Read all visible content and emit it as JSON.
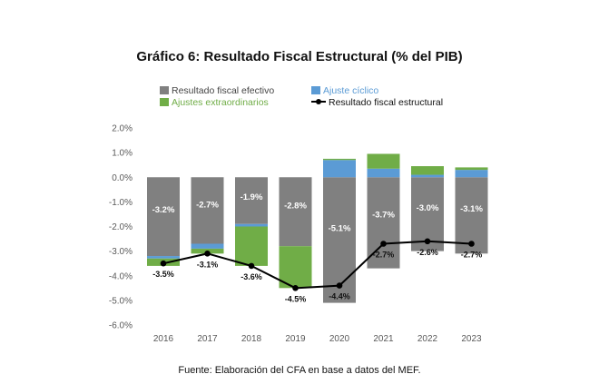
{
  "title": "Gráfico 6: Resultado Fiscal Estructural (% del PIB)",
  "source": "Fuente: Elaboración del CFA en base a datos del MEF.",
  "colors": {
    "effective": "#808080",
    "cyclical": "#5b9bd5",
    "extraordinary": "#70ad47",
    "structural": "#000000",
    "axis_text": "#595959"
  },
  "chart_data": {
    "type": "bar",
    "categories": [
      "2016",
      "2017",
      "2018",
      "2019",
      "2020",
      "2021",
      "2022",
      "2023"
    ],
    "ylim": [
      -6.0,
      2.0
    ],
    "yticks": [
      "2.0%",
      "1.0%",
      "0.0%",
      "-1.0%",
      "-2.0%",
      "-3.0%",
      "-4.0%",
      "-5.0%",
      "-6.0%"
    ],
    "legend": {
      "effective": "Resultado fiscal efectivo",
      "cyclical": "Ajuste cíclico",
      "extraordinary": "Ajustes extraordinarios",
      "structural": "Resultado fiscal estructural"
    },
    "series": [
      {
        "name": "Resultado fiscal efectivo",
        "type": "bar",
        "values": [
          -3.2,
          -2.7,
          -1.9,
          -2.8,
          -5.1,
          -3.7,
          -3.0,
          -3.1
        ],
        "labels": [
          "-3.2%",
          "-2.7%",
          "-1.9%",
          "-2.8%",
          "-5.1%",
          "-3.7%",
          "-3.0%",
          "-3.1%"
        ]
      },
      {
        "name": "Ajuste cíclico",
        "type": "stacked",
        "values": [
          0.1,
          0.2,
          0.1,
          0.0,
          0.7,
          0.35,
          0.1,
          0.3
        ]
      },
      {
        "name": "Ajustes extraordinarios",
        "type": "stacked",
        "values": [
          0.3,
          0.2,
          1.6,
          1.7,
          0.05,
          0.6,
          0.35,
          0.1
        ]
      },
      {
        "name": "Resultado fiscal estructural",
        "type": "line",
        "values": [
          -3.5,
          -3.1,
          -3.6,
          -4.5,
          -4.4,
          -2.7,
          -2.6,
          -2.7
        ],
        "labels": [
          "-3.5%",
          "-3.1%",
          "-3.6%",
          "-4.5%",
          "-4.4%",
          "-2.7%",
          "-2.6%",
          "-2.7%"
        ]
      }
    ]
  }
}
